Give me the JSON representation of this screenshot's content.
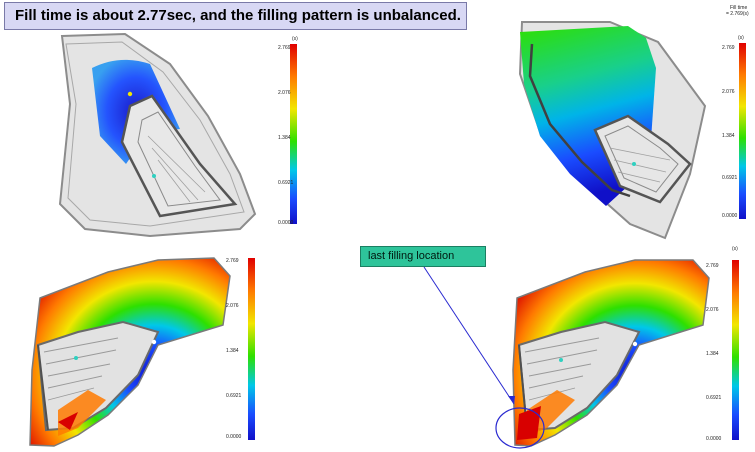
{
  "title": "Fill time is about 2.77sec, and the filling pattern is unbalanced.",
  "callout": "last filling location",
  "panels": [
    {
      "id": "top-left",
      "result_label": "(s)",
      "ticks": [
        "2.769",
        "2.076",
        "1.384",
        "0.6921",
        "0.0000"
      ]
    },
    {
      "id": "top-right",
      "result_label": "(s)",
      "header_lines": [
        "Fill time",
        "= 2.769(s)"
      ],
      "ticks": [
        "2.769",
        "2.076",
        "1.384",
        "0.6921",
        "0.0000"
      ]
    },
    {
      "id": "bottom-left",
      "result_label": "",
      "ticks": [
        "2.769",
        "2.076",
        "1.384",
        "0.6921",
        "0.0000"
      ]
    },
    {
      "id": "bottom-right",
      "result_label": "(s)",
      "ticks": [
        "2.769",
        "2.076",
        "1.384",
        "0.6921",
        "0.0000"
      ]
    }
  ],
  "colors": {
    "title_bg": "#d8d8f4",
    "callout_bg": "#2ec49a",
    "arrow": "#2a2ad0",
    "scale_high": "#e00000",
    "scale_low": "#1010c8"
  }
}
